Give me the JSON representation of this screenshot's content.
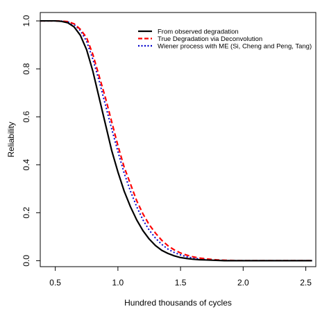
{
  "chart_data": {
    "type": "line",
    "xlabel": "Hundred thousands of cycles",
    "ylabel": "Reliability",
    "xlim": [
      0.38,
      2.58
    ],
    "ylim": [
      -0.025,
      1.035
    ],
    "x_ticks": [
      0.5,
      1.0,
      1.5,
      2.0,
      2.5
    ],
    "x_tick_labels": [
      "0.5",
      "1.0",
      "1.5",
      "2.0",
      "2.5"
    ],
    "y_ticks": [
      0.0,
      0.2,
      0.4,
      0.6,
      0.8,
      1.0
    ],
    "y_tick_labels": [
      "0.0",
      "0.2",
      "0.4",
      "0.6",
      "0.8",
      "1.0"
    ],
    "grid": false,
    "legend_position": "top-right",
    "x": [
      0.38,
      0.5,
      0.55,
      0.6,
      0.65,
      0.7,
      0.75,
      0.8,
      0.85,
      0.9,
      0.95,
      1.0,
      1.05,
      1.1,
      1.15,
      1.2,
      1.25,
      1.3,
      1.35,
      1.4,
      1.45,
      1.5,
      1.55,
      1.6,
      1.65,
      1.7,
      1.75,
      1.8,
      1.85,
      1.9,
      2.0,
      2.1,
      2.2,
      2.3,
      2.4,
      2.5,
      2.55
    ],
    "series": [
      {
        "name": "From observed degradation",
        "color": "#000000",
        "dash": "solid",
        "values": [
          1.0,
          1.0,
          0.998,
          0.992,
          0.975,
          0.94,
          0.88,
          0.79,
          0.68,
          0.57,
          0.46,
          0.37,
          0.29,
          0.225,
          0.17,
          0.125,
          0.09,
          0.063,
          0.043,
          0.03,
          0.02,
          0.013,
          0.009,
          0.006,
          0.004,
          0.003,
          0.002,
          0.001,
          0.0,
          0.0,
          0.0,
          0.0,
          0.0,
          0.0,
          0.0,
          0.0,
          0.0
        ]
      },
      {
        "name": "True Degradation via Deconvolution",
        "color": "#ff0000",
        "dash": "dashed",
        "values": [
          1.0,
          1.0,
          0.999,
          0.997,
          0.988,
          0.965,
          0.93,
          0.86,
          0.77,
          0.68,
          0.58,
          0.48,
          0.39,
          0.32,
          0.25,
          0.195,
          0.15,
          0.115,
          0.085,
          0.062,
          0.045,
          0.032,
          0.023,
          0.016,
          0.011,
          0.008,
          0.005,
          0.003,
          0.002,
          0.001,
          0.0,
          0.0,
          0.0,
          0.0,
          0.0,
          0.0,
          0.0
        ]
      },
      {
        "name": "Wiener process with ME (Si, Cheng and Peng, Tang)",
        "color": "#0000cc",
        "dash": "dotted",
        "values": [
          1.0,
          1.0,
          0.999,
          0.996,
          0.985,
          0.96,
          0.915,
          0.84,
          0.75,
          0.65,
          0.55,
          0.455,
          0.365,
          0.29,
          0.225,
          0.17,
          0.127,
          0.094,
          0.068,
          0.048,
          0.034,
          0.024,
          0.016,
          0.011,
          0.007,
          0.005,
          0.003,
          0.002,
          0.001,
          0.0,
          0.0,
          0.0,
          0.0,
          0.0,
          0.0,
          0.0,
          0.0
        ]
      }
    ]
  }
}
